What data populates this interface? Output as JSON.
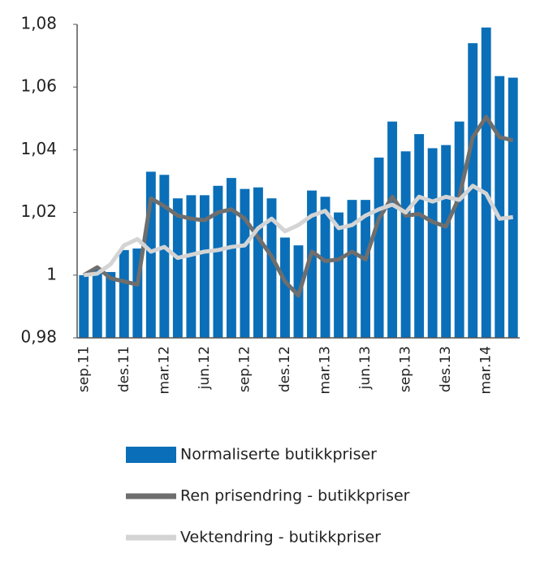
{
  "chart_data": {
    "type": "bar-line",
    "categories": [
      "sep.11",
      null,
      null,
      "des.11",
      null,
      null,
      "mar.12",
      null,
      null,
      "jun.12",
      null,
      null,
      "sep.12",
      null,
      null,
      "des.12",
      null,
      null,
      "mar.13",
      null,
      null,
      "jun.13",
      null,
      null,
      "sep.13",
      null,
      null,
      "des.13",
      null,
      null,
      "mar.14",
      null,
      null
    ],
    "series": [
      {
        "name": "Normaliserte butikkpriser",
        "type": "bar",
        "color": "#0a6fb8",
        "values": [
          1.0,
          1.002,
          1.001,
          1.008,
          1.0085,
          1.033,
          1.032,
          1.0245,
          1.0255,
          1.0255,
          1.0285,
          1.031,
          1.0275,
          1.028,
          1.0245,
          1.012,
          1.0095,
          1.027,
          1.025,
          1.02,
          1.024,
          1.024,
          1.0375,
          1.049,
          1.0395,
          1.045,
          1.0405,
          1.0415,
          1.049,
          1.074,
          1.079,
          1.0635,
          1.063
        ]
      },
      {
        "name": "Ren prisendring - butikkpriser",
        "type": "line",
        "color": "#6e6e6e",
        "values": [
          1.0,
          1.0025,
          0.999,
          0.998,
          0.997,
          1.0245,
          1.022,
          1.019,
          1.018,
          1.0175,
          1.02,
          1.021,
          1.018,
          1.012,
          1.006,
          0.998,
          0.9935,
          1.0075,
          1.0045,
          1.005,
          1.0075,
          1.005,
          1.018,
          1.025,
          1.019,
          1.0195,
          1.017,
          1.0155,
          1.025,
          1.044,
          1.0505,
          1.044,
          1.043
        ]
      },
      {
        "name": "Vektendring - butikkpriser",
        "type": "line",
        "color": "#d4d4d4",
        "values": [
          1.0,
          1.0005,
          1.0035,
          1.0095,
          1.0115,
          1.0075,
          1.009,
          1.0055,
          1.0065,
          1.0075,
          1.008,
          1.009,
          1.0095,
          1.015,
          1.018,
          1.014,
          1.016,
          1.019,
          1.0205,
          1.015,
          1.016,
          1.019,
          1.021,
          1.0225,
          1.02,
          1.025,
          1.0235,
          1.025,
          1.024,
          1.0285,
          1.026,
          1.018,
          1.0185
        ]
      }
    ],
    "ylim": [
      0.98,
      1.08
    ],
    "yticks": [
      {
        "value": 0.98,
        "label": "0,98"
      },
      1,
      {
        "value": 1.02,
        "label": "1,02"
      },
      {
        "value": 1.04,
        "label": "1,04"
      },
      {
        "value": 1.06,
        "label": "1,06"
      },
      {
        "value": 1.08,
        "label": "1,08"
      }
    ],
    "grid": false
  }
}
